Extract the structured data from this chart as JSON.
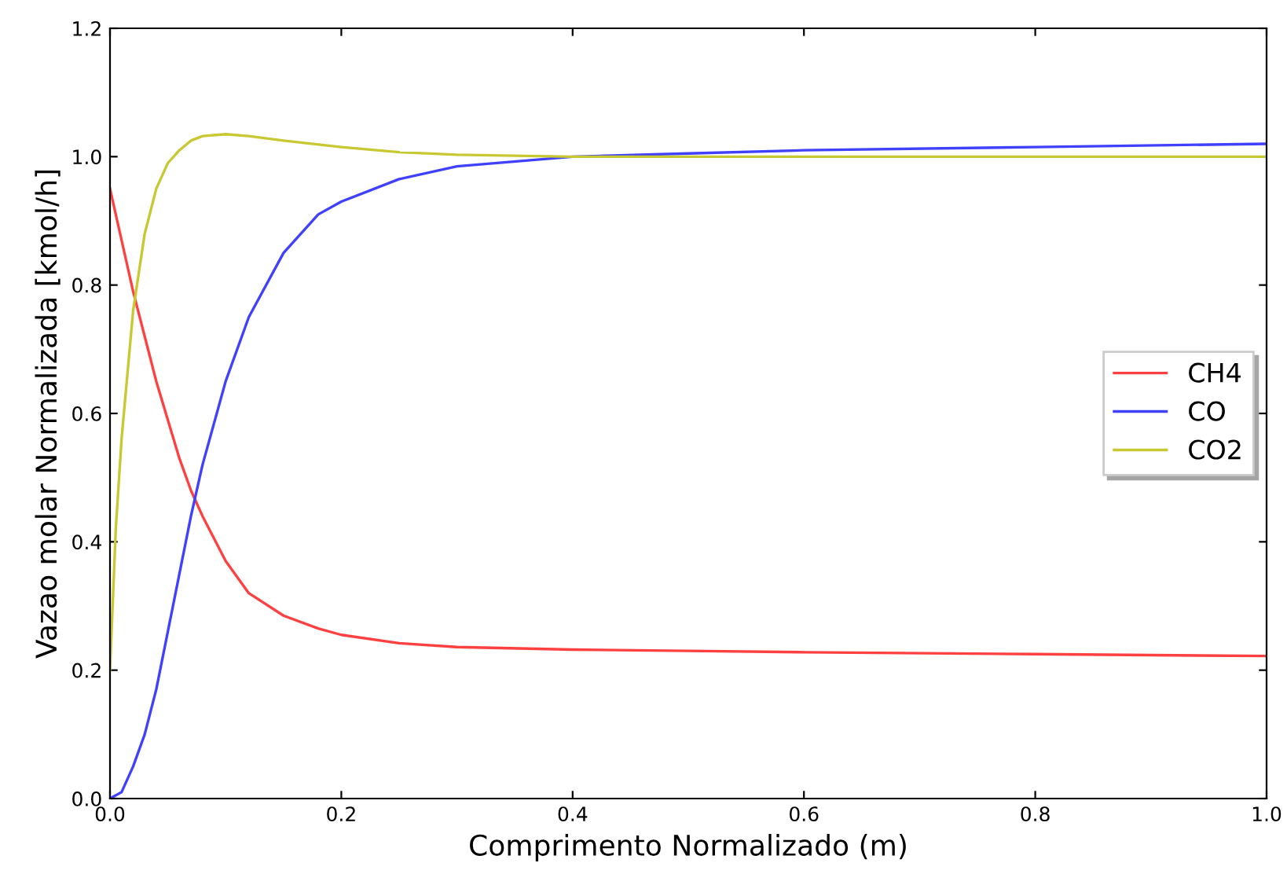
{
  "chart_data": {
    "type": "line",
    "xlabel": "Comprimento Normalizado (m)",
    "ylabel": "Vazao molar Normalizada [kmol/h]",
    "xlim": [
      0,
      1
    ],
    "ylim": [
      0,
      1.2
    ],
    "xticks": [
      {
        "value": 0,
        "label": "0.0"
      },
      {
        "value": 0.2,
        "label": "0.2"
      },
      {
        "value": 0.4,
        "label": "0.4"
      },
      {
        "value": 0.6,
        "label": "0.6"
      },
      {
        "value": 0.8,
        "label": "0.8"
      },
      {
        "value": 1,
        "label": "1.0"
      }
    ],
    "yticks": [
      {
        "value": 0,
        "label": "0.0"
      },
      {
        "value": 0.2,
        "label": "0.2"
      },
      {
        "value": 0.4,
        "label": "0.4"
      },
      {
        "value": 0.6,
        "label": "0.6"
      },
      {
        "value": 0.8,
        "label": "0.8"
      },
      {
        "value": 1,
        "label": "1.0"
      },
      {
        "value": 1.2,
        "label": "1.2"
      }
    ],
    "grid": false,
    "legend": "right",
    "marker": "none",
    "line_style": "solid",
    "series": [
      {
        "name": "CH4",
        "color": "#ff4040",
        "x": [
          0,
          0.01,
          0.02,
          0.03,
          0.04,
          0.05,
          0.06,
          0.07,
          0.08,
          0.1,
          0.12,
          0.15,
          0.18,
          0.2,
          0.25,
          0.3,
          0.4,
          0.5,
          0.6,
          0.8,
          1.0
        ],
        "values": [
          0.95,
          0.87,
          0.79,
          0.72,
          0.65,
          0.59,
          0.53,
          0.48,
          0.44,
          0.37,
          0.32,
          0.285,
          0.265,
          0.255,
          0.242,
          0.236,
          0.232,
          0.23,
          0.228,
          0.225,
          0.222
        ]
      },
      {
        "name": "CO",
        "color": "#4040ff",
        "x": [
          0,
          0.01,
          0.02,
          0.03,
          0.04,
          0.05,
          0.06,
          0.07,
          0.08,
          0.1,
          0.12,
          0.15,
          0.18,
          0.2,
          0.25,
          0.3,
          0.4,
          0.5,
          0.6,
          0.8,
          1.0
        ],
        "values": [
          0,
          0.01,
          0.05,
          0.1,
          0.17,
          0.26,
          0.35,
          0.44,
          0.52,
          0.65,
          0.75,
          0.85,
          0.91,
          0.93,
          0.965,
          0.985,
          1.0,
          1.005,
          1.01,
          1.015,
          1.02
        ]
      },
      {
        "name": "CO2",
        "color": "#c8c832",
        "x": [
          0,
          0.005,
          0.01,
          0.02,
          0.03,
          0.04,
          0.05,
          0.06,
          0.07,
          0.08,
          0.1,
          0.12,
          0.15,
          0.2,
          0.25,
          0.3,
          0.4,
          0.5,
          0.6,
          0.8,
          1.0
        ],
        "values": [
          0.2,
          0.42,
          0.56,
          0.76,
          0.88,
          0.95,
          0.99,
          1.01,
          1.025,
          1.032,
          1.035,
          1.032,
          1.025,
          1.015,
          1.007,
          1.003,
          1.0,
          1.0,
          1.0,
          1.0,
          1.0
        ]
      }
    ]
  }
}
